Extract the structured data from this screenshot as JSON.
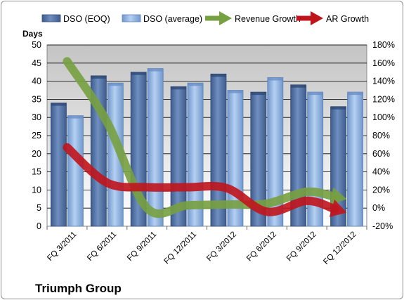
{
  "chart_data": {
    "type": "bar",
    "company": "Triumph Group",
    "y_unit_label": "Days",
    "categories": [
      "FQ 3/2011",
      "FQ 6/2011",
      "FQ 9/2011",
      "FQ 12/2011",
      "FQ 3/2012",
      "FQ 6/2012",
      "FQ 9/2012",
      "FQ 12/2012"
    ],
    "left_axis": {
      "min": 0,
      "max": 50,
      "step": 5,
      "ticks": [
        "0",
        "5",
        "10",
        "15",
        "20",
        "25",
        "30",
        "35",
        "40",
        "45",
        "50"
      ]
    },
    "right_axis": {
      "min": -20,
      "max": 180,
      "step": 20,
      "ticks": [
        "-20%",
        "0%",
        "20%",
        "40%",
        "60%",
        "80%",
        "100%",
        "120%",
        "140%",
        "160%",
        "180%"
      ]
    },
    "series": [
      {
        "name": "DSO (EOQ)",
        "kind": "bar",
        "axis": "left",
        "color": "#4f6fa0",
        "values": [
          34,
          41.5,
          42.5,
          38.5,
          42,
          37,
          39,
          33
        ]
      },
      {
        "name": "DSO (average)",
        "kind": "bar",
        "axis": "left",
        "color": "#88aee0",
        "values": [
          30.5,
          39.5,
          43.5,
          39.5,
          37.5,
          41,
          37,
          37
        ]
      },
      {
        "name": "Revenue Growth",
        "kind": "line-arrow",
        "axis": "right",
        "color": "#77a040",
        "values": [
          162,
          95,
          0,
          3,
          4,
          5,
          18,
          10
        ]
      },
      {
        "name": "AR Growth",
        "kind": "line-arrow",
        "axis": "right",
        "color": "#c0141c",
        "values": [
          67,
          28,
          23,
          23,
          22,
          -4,
          8,
          -5
        ]
      }
    ],
    "grid": true,
    "legend_position": "top"
  }
}
